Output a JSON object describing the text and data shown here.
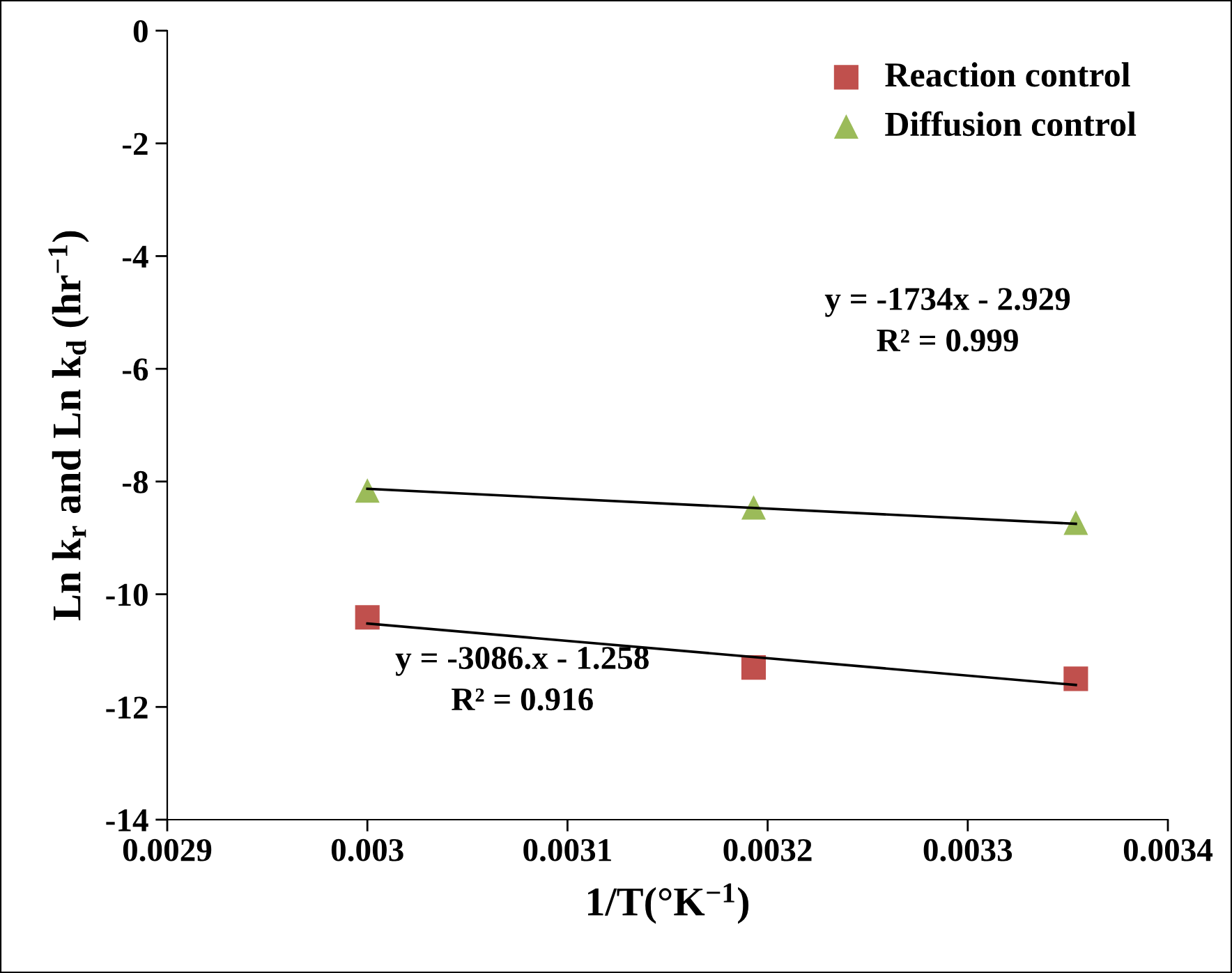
{
  "chart_data": {
    "type": "scatter",
    "xlabel": "1/T(°K$^{−1}$)",
    "ylabel": "Ln k$_{r}$ and Ln k$_{d}$ (hr$^{−1}$)",
    "xlim": [
      0.0029,
      0.0034
    ],
    "xticks": [
      0.0029,
      0.003,
      0.0031,
      0.0032,
      0.0033,
      0.0034
    ],
    "ylim": [
      -14,
      0
    ],
    "yticks": [
      -14,
      -12,
      -10,
      -8,
      -6,
      -4,
      -2,
      0
    ],
    "grid": false,
    "legend": "top right",
    "series": [
      {
        "name": "Reaction control",
        "color": "#c0504d",
        "marker": "square",
        "x": [
          0.003,
          0.003193,
          0.003354
        ],
        "values": [
          -10.41,
          -11.3,
          -11.5
        ]
      },
      {
        "name": "Diffusion control",
        "color": "#9bbb59",
        "marker": "triangle",
        "x": [
          0.003,
          0.003193,
          0.003354
        ],
        "values": [
          -8.16,
          -8.46,
          -8.73
        ]
      },
      {
        "type": "line",
        "color": "#000000",
        "marker": "none",
        "x": [
          0.003,
          0.003354
        ],
        "values": [
          -10.52,
          -11.61
        ]
      },
      {
        "type": "line",
        "color": "#000000",
        "marker": "none",
        "x": [
          0.003,
          0.003354
        ],
        "values": [
          -8.13,
          -8.75
        ]
      }
    ],
    "annotations": [
      "y = -1734x - 2.929\nR² = 0.999",
      "y = -3086.x - 1.258\nR² = 0.916"
    ]
  }
}
